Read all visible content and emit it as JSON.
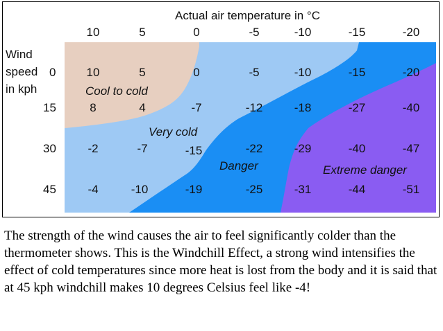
{
  "chart_data": {
    "type": "table",
    "title": "Actual air temperature in °C",
    "row_header": [
      "Wind",
      "speed",
      "in kph"
    ],
    "columns": [
      "10",
      "5",
      "0",
      "-5",
      "-10",
      "-15",
      "-20"
    ],
    "rows": [
      {
        "label": "0",
        "values": [
          "10",
          "5",
          "0",
          "-5",
          "-10",
          "-15",
          "-20"
        ]
      },
      {
        "label": "15",
        "values": [
          "8",
          "4",
          "-7",
          "-12",
          "-18",
          "-27",
          "-40"
        ]
      },
      {
        "label": "30",
        "values": [
          "-2",
          "-7",
          "-15",
          "-22",
          "-29",
          "-40",
          "-47"
        ]
      },
      {
        "label": "45",
        "values": [
          "-4",
          "-10",
          "-19",
          "-25",
          "-31",
          "-44",
          "-51"
        ]
      }
    ],
    "zones": [
      {
        "label": "Cool to cold",
        "color": "#e7cfc0"
      },
      {
        "label": "Very cold",
        "color": "#9ec9f4"
      },
      {
        "label": "Danger",
        "color": "#1a8ef4"
      },
      {
        "label": "Extreme danger",
        "color": "#8a5cf2"
      }
    ]
  },
  "caption": "The strength of the wind causes the air to feel significantly colder than the thermometer shows. This is the Windchill Effect, a strong wind intensifies the effect of cold temperatures since more heat is lost from the body and it is said that at 45 kph windchill makes 10 degrees Celsius feel like -4!"
}
